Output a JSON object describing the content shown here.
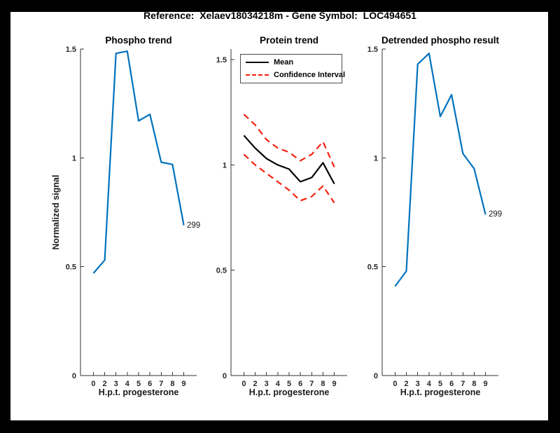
{
  "figure": {
    "window_background": "#000000",
    "background": "#ffffff",
    "title": "Reference:  Xelaev18034218m - Gene Symbol:  LOC494651"
  },
  "colors": {
    "blue": "#0072BD",
    "red": "#F5220E",
    "black": "#000000",
    "axis": "#333333"
  },
  "legend": {
    "position": "upper-left-of-middle-plot",
    "items": [
      {
        "label": "Mean",
        "style": "solid",
        "color": "#000000"
      },
      {
        "label": "Confidence Interval",
        "style": "dashed",
        "color": "#F5220E"
      }
    ]
  },
  "chart_data": [
    {
      "type": "line",
      "title": "Phospho trend",
      "xlabel": "H.p.t. progesterone",
      "ylabel": "Normalized signal",
      "x": [
        0,
        2,
        3,
        4,
        5,
        6,
        7,
        8,
        9
      ],
      "x_ticklabels": [
        "0",
        "2",
        "3",
        "4",
        "5",
        "6",
        "7",
        "8",
        "9"
      ],
      "y_ticks": [
        0,
        0.5,
        1,
        1.5
      ],
      "y_ticklabels": [
        "0",
        "0.5",
        "1",
        "1.5"
      ],
      "ylim": [
        0,
        1.5
      ],
      "grid": false,
      "series": [
        {
          "name": "phospho",
          "color": "#0072BD",
          "style": "solid",
          "values": [
            0.47,
            0.53,
            1.48,
            1.49,
            1.17,
            1.2,
            0.98,
            0.97,
            0.69
          ]
        }
      ],
      "end_label": "299"
    },
    {
      "type": "line",
      "title": "Protein trend",
      "xlabel": "H.p.t. progesterone",
      "ylabel": "",
      "x": [
        0,
        2,
        3,
        4,
        5,
        6,
        7,
        8,
        9
      ],
      "x_ticklabels": [
        "0",
        "2",
        "3",
        "4",
        "5",
        "6",
        "7",
        "8",
        "9"
      ],
      "y_ticks": [
        0,
        0.5,
        1,
        1.5
      ],
      "y_ticklabels": [
        "0",
        "0.5",
        "1",
        "1.5"
      ],
      "ylim": [
        0,
        1.55
      ],
      "grid": false,
      "legend_position": "upper-left",
      "series": [
        {
          "name": "mean",
          "color": "#000000",
          "style": "solid",
          "values": [
            1.14,
            1.08,
            1.03,
            1.0,
            0.98,
            0.92,
            0.94,
            1.01,
            0.91
          ]
        },
        {
          "name": "ci-upper",
          "color": "#F5220E",
          "style": "dashed",
          "values": [
            1.24,
            1.19,
            1.12,
            1.08,
            1.06,
            1.02,
            1.05,
            1.11,
            0.99
          ]
        },
        {
          "name": "ci-lower",
          "color": "#F5220E",
          "style": "dashed",
          "values": [
            1.05,
            1.0,
            0.96,
            0.92,
            0.88,
            0.83,
            0.85,
            0.9,
            0.82
          ]
        }
      ],
      "end_label": ""
    },
    {
      "type": "line",
      "title": "Detrended phospho result",
      "xlabel": "H.p.t. progesterone",
      "ylabel": "",
      "x": [
        0,
        2,
        3,
        4,
        5,
        6,
        7,
        8,
        9
      ],
      "x_ticklabels": [
        "0",
        "2",
        "3",
        "4",
        "5",
        "6",
        "7",
        "8",
        "9"
      ],
      "y_ticks": [
        0,
        0.5,
        1,
        1.5
      ],
      "y_ticklabels": [
        "0",
        "0.5",
        "1",
        "1.5"
      ],
      "ylim": [
        0,
        1.5
      ],
      "grid": false,
      "series": [
        {
          "name": "detrended-phospho",
          "color": "#0072BD",
          "style": "solid",
          "values": [
            0.41,
            0.48,
            1.43,
            1.48,
            1.19,
            1.29,
            1.02,
            0.95,
            0.74
          ]
        }
      ],
      "end_label": "299"
    }
  ]
}
